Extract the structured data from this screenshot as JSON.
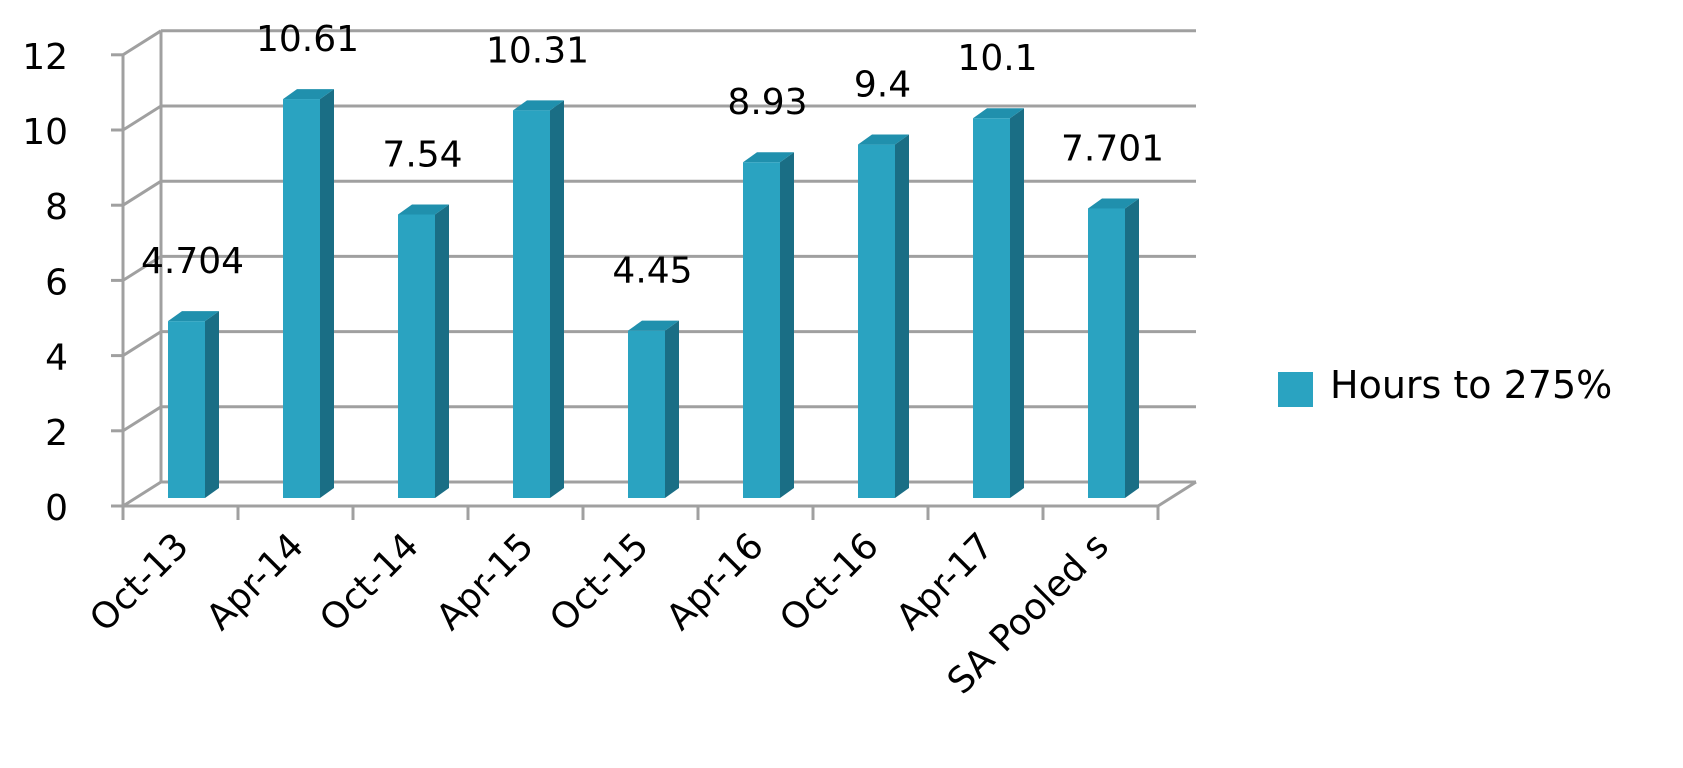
{
  "chart_data": {
    "type": "bar",
    "categories": [
      "Oct-13",
      "Apr-14",
      "Oct-14",
      "Apr-15",
      "Oct-15",
      "Apr-16",
      "Oct-16",
      "Apr-17",
      "SA Pooled s"
    ],
    "series": [
      {
        "name": "Hours to 275%",
        "values": [
          4.704,
          10.61,
          7.54,
          10.31,
          4.45,
          8.93,
          9.4,
          10.1,
          7.701
        ]
      }
    ],
    "data_labels": [
      "4.704",
      "10.61",
      "7.54",
      "10.31",
      "4.45",
      "8.93",
      "9.4",
      "10.1",
      "7.701"
    ],
    "yticks": [
      "0",
      "2",
      "4",
      "6",
      "8",
      "10",
      "12"
    ],
    "ylim": [
      0,
      12
    ],
    "grid": true,
    "legend_position": "right",
    "style": "3d-column",
    "title": "",
    "xlabel": "",
    "ylabel": "",
    "colors": {
      "bar_front": "#2aa3c1",
      "bar_side": "#1a6e85",
      "bar_top": "#2090ad",
      "grid": "#a0a0a0"
    }
  }
}
